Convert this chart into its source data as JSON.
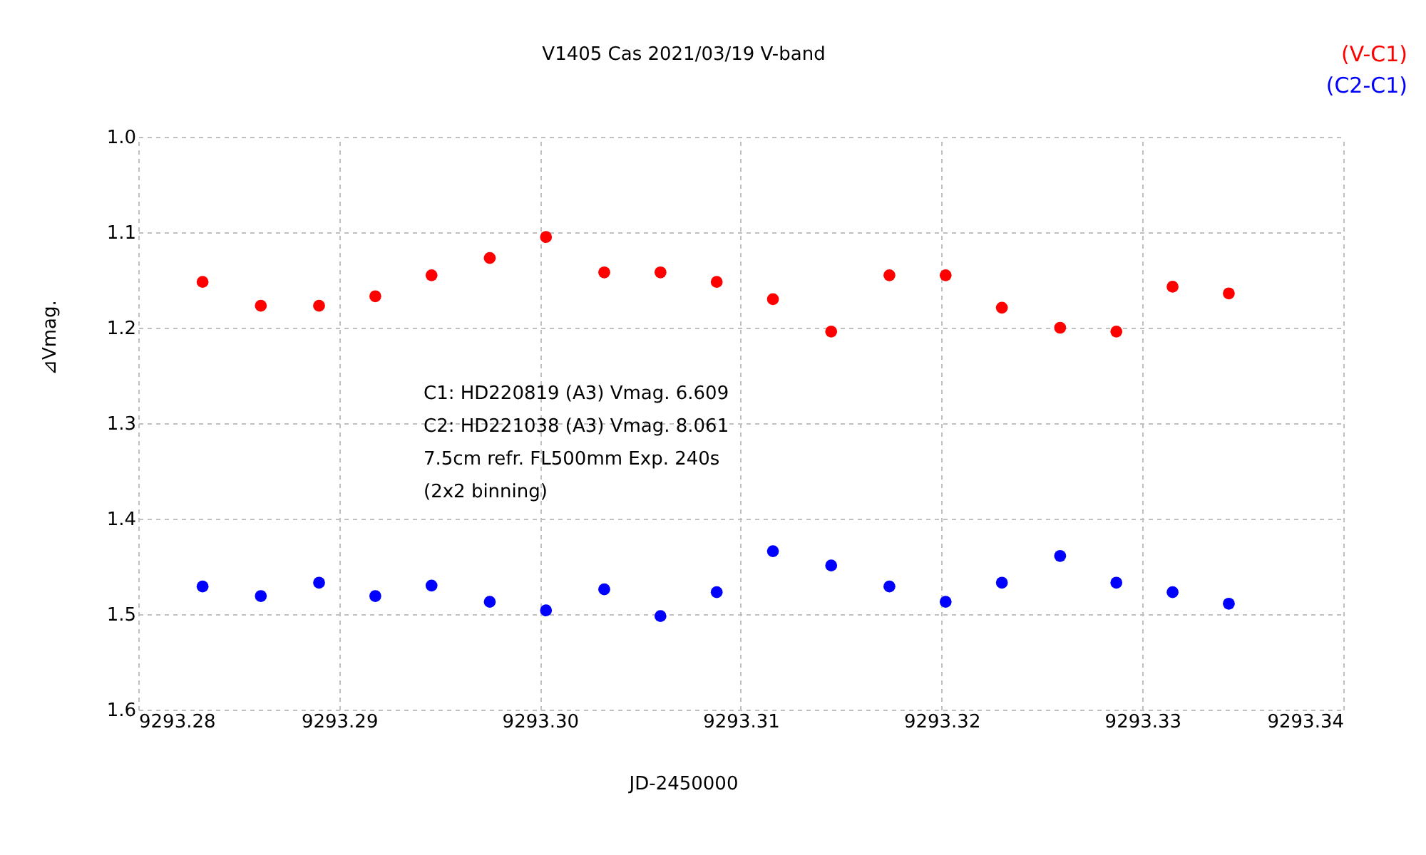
{
  "chart_data": {
    "type": "scatter",
    "title": "V1405 Cas   2021/03/19   V-band",
    "xlabel": "JD-2450000",
    "ylabel": "⊿Vmag.",
    "x": [
      9293.2832,
      9293.2861,
      9293.289,
      9293.2918,
      9293.2946,
      9293.2975,
      9293.3003,
      9293.3032,
      9293.306,
      9293.3088,
      9293.3116,
      9293.3145,
      9293.3174,
      9293.3202,
      9293.323,
      9293.3259,
      9293.3287,
      9293.3315,
      9293.3343
    ],
    "series": [
      {
        "name": "(V-C1)",
        "color": "#ff0000",
        "values": [
          1.152,
          1.177,
          1.177,
          1.167,
          1.145,
          1.127,
          1.105,
          1.142,
          1.142,
          1.152,
          1.17,
          1.204,
          1.145,
          1.145,
          1.179,
          1.2,
          1.204,
          1.157,
          1.164
        ]
      },
      {
        "name": "(C2-C1)",
        "color": "#0000ff",
        "values": [
          1.471,
          1.481,
          1.467,
          1.481,
          1.47,
          1.487,
          1.496,
          1.474,
          1.502,
          1.477,
          1.434,
          1.449,
          1.471,
          1.487,
          1.467,
          1.439,
          1.467,
          1.477,
          1.489
        ]
      }
    ],
    "xlim": [
      9293.28,
      9293.34
    ],
    "xticks": [
      {
        "value": 9293.28,
        "label": "9293.28"
      },
      {
        "value": 9293.29,
        "label": "9293.29"
      },
      {
        "value": 9293.3,
        "label": "9293.30"
      },
      {
        "value": 9293.31,
        "label": "9293.31"
      },
      {
        "value": 9293.32,
        "label": "9293.32"
      },
      {
        "value": 9293.33,
        "label": "9293.33"
      },
      {
        "value": 9293.34,
        "label": "9293.34"
      }
    ],
    "ylim": [
      1.6,
      1.0
    ],
    "yticks": [
      {
        "value": 1.0,
        "label": "1.0"
      },
      1.1,
      1.2,
      1.3,
      1.4,
      1.5,
      1.6
    ],
    "annotations": [
      "C1: HD220819 (A3) Vmag. 6.609",
      "C2: HD221038 (A3) Vmag. 8.061",
      "7.5cm refr. FL500mm  Exp. 240s",
      "(2x2 binning)"
    ],
    "grid": true,
    "marker": "circle"
  }
}
